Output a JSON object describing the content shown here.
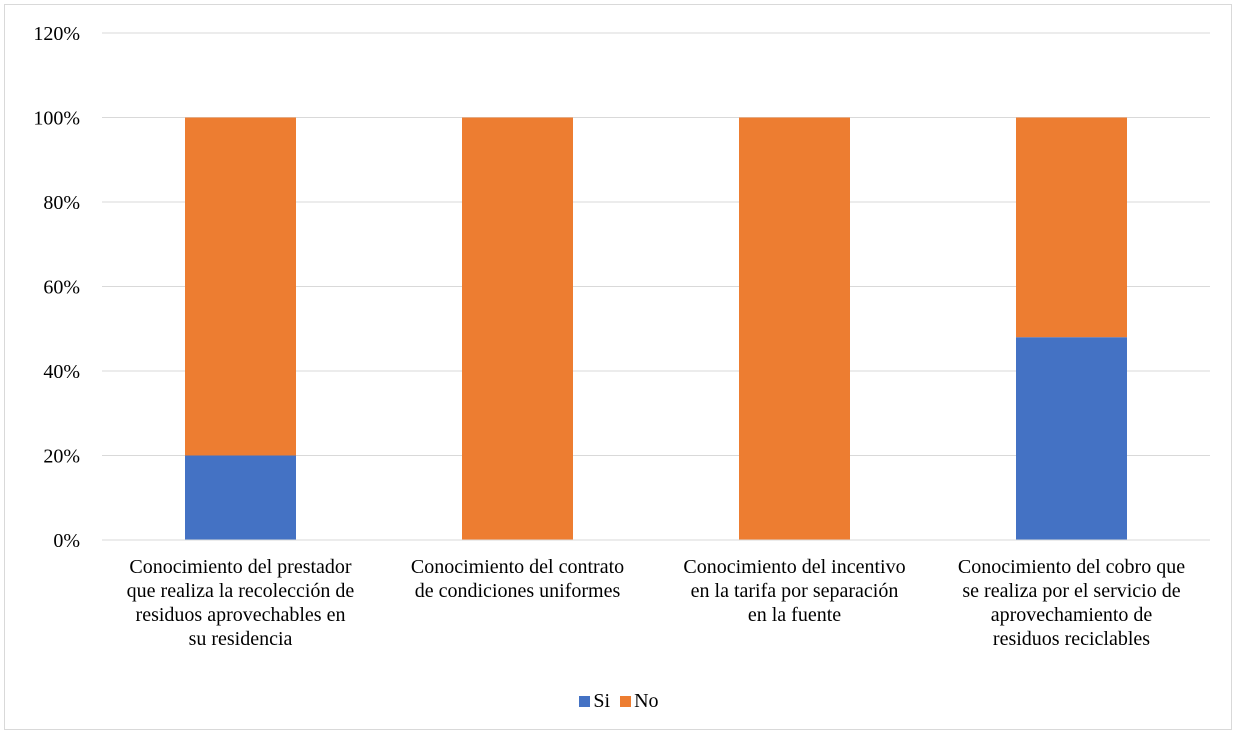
{
  "chart_data": {
    "type": "bar",
    "stacked": true,
    "percent": true,
    "categories": [
      "Conocimiento del prestador que realiza la recolección de residuos aprovechables en su residencia",
      "Conocimiento del contrato de condiciones uniformes",
      "Conocimiento del incentivo en la tarifa por separación en la fuente",
      "Conocimiento del cobro que se realiza por el servicio de aprovechamiento de residuos reciclables"
    ],
    "category_lines": [
      [
        "Conocimiento del prestador",
        "que realiza la recolección de",
        "residuos aprovechables en",
        "su residencia"
      ],
      [
        "Conocimiento del contrato",
        "de condiciones uniformes"
      ],
      [
        "Conocimiento del incentivo",
        "en la tarifa por separación",
        "en la fuente"
      ],
      [
        "Conocimiento del cobro que",
        "se realiza por el servicio de",
        "aprovechamiento de",
        "residuos reciclables"
      ]
    ],
    "series": [
      {
        "name": "Si",
        "color": "#4472C4",
        "values": [
          20,
          0,
          0,
          48
        ]
      },
      {
        "name": "No",
        "color": "#ED7D31",
        "values": [
          80,
          100,
          100,
          52
        ]
      }
    ],
    "ylim": [
      0,
      120
    ],
    "yticks": [
      "0%",
      "20%",
      "40%",
      "60%",
      "80%",
      "100%",
      "120%"
    ],
    "ytick_values": [
      0,
      20,
      40,
      60,
      80,
      100,
      120
    ],
    "grid": true,
    "legend_position": "bottom"
  }
}
